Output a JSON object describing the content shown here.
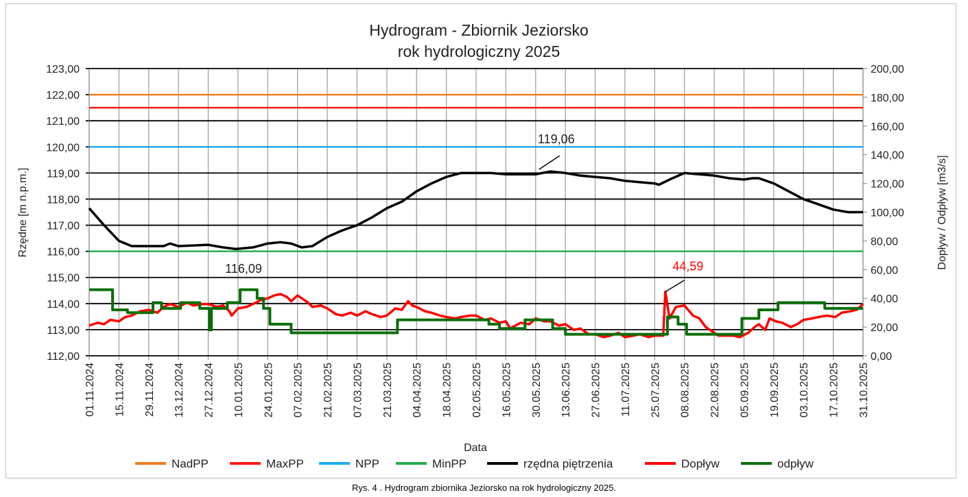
{
  "chart_data": {
    "type": "line",
    "title": "Hydrogram - Zbiornik Jeziorsko",
    "subtitle": "rok hydrologiczny 2025",
    "xlabel": "Data",
    "ylabel": "Rzędne [m n.p.m.]",
    "y2label": "Dopływ / Odpływ [m3/s]",
    "ylim": [
      112,
      123
    ],
    "y2lim": [
      0,
      200
    ],
    "grid": true,
    "legend_position": "bottom",
    "y_ticks": [
      "112,00",
      "113,00",
      "114,00",
      "115,00",
      "116,00",
      "117,00",
      "118,00",
      "119,00",
      "120,00",
      "121,00",
      "122,00",
      "123,00"
    ],
    "y2_ticks": [
      "0,00",
      "20,00",
      "40,00",
      "60,00",
      "80,00",
      "100,00",
      "120,00",
      "140,00",
      "160,00",
      "180,00",
      "200,00"
    ],
    "x_ticks": [
      "01.11.2024",
      "15.11.2024",
      "29.11.2024",
      "13.12.2024",
      "27.12.2024",
      "10.01.2025",
      "24.01.2025",
      "07.02.2025",
      "21.02.2025",
      "07.03.2025",
      "21.03.2025",
      "04.04.2025",
      "18.04.2025",
      "02.05.2025",
      "16.05.2025",
      "30.05.2025",
      "13.06.2025",
      "27.06.2025",
      "11.07.2025",
      "25.07.2025",
      "08.08.2025",
      "22.08.2025",
      "05.09.2025",
      "19.09.2025",
      "03.10.2025",
      "17.10.2025",
      "31.10.2025"
    ],
    "x_tick_days": [
      0,
      14,
      28,
      42,
      56,
      70,
      84,
      98,
      112,
      126,
      140,
      154,
      168,
      182,
      196,
      210,
      224,
      238,
      252,
      266,
      280,
      294,
      308,
      322,
      336,
      350,
      364
    ],
    "x_days_range": [
      0,
      364
    ],
    "series": [
      {
        "name": "NadPP",
        "axis": "left",
        "color": "#f07d1e",
        "constant": 122.0
      },
      {
        "name": "MaxPP",
        "axis": "left",
        "color": "#ff1a1a",
        "constant": 121.5
      },
      {
        "name": "NPP",
        "axis": "left",
        "color": "#1eaaf0",
        "constant": 120.0
      },
      {
        "name": "MinPP",
        "axis": "left",
        "color": "#22b14c",
        "constant": 116.0
      },
      {
        "name": "rzędna piętrzenia",
        "axis": "left",
        "color": "#000000",
        "days": [
          0,
          7,
          14,
          20,
          28,
          35,
          38,
          42,
          56,
          63,
          69,
          77,
          84,
          90,
          95,
          100,
          105,
          112,
          119,
          126,
          133,
          140,
          147,
          154,
          161,
          168,
          175,
          182,
          189,
          196,
          203,
          210,
          217,
          224,
          231,
          238,
          245,
          252,
          259,
          266,
          268,
          273,
          280,
          287,
          294,
          301,
          308,
          312,
          315,
          322,
          329,
          336,
          343,
          350,
          357,
          364
        ],
        "values": [
          117.65,
          117.0,
          116.4,
          116.2,
          116.2,
          116.2,
          116.3,
          116.2,
          116.25,
          116.15,
          116.09,
          116.15,
          116.3,
          116.35,
          116.3,
          116.15,
          116.2,
          116.55,
          116.8,
          117.0,
          117.3,
          117.65,
          117.9,
          118.3,
          118.6,
          118.85,
          119.0,
          119.0,
          119.0,
          118.95,
          118.95,
          118.95,
          119.06,
          119.0,
          118.9,
          118.85,
          118.8,
          118.7,
          118.65,
          118.6,
          118.55,
          118.75,
          119.0,
          118.95,
          118.9,
          118.8,
          118.75,
          118.8,
          118.8,
          118.6,
          118.3,
          118.0,
          117.8,
          117.6,
          117.5,
          117.5
        ]
      },
      {
        "name": "Dopływ",
        "axis": "right",
        "color": "#ff0000",
        "days": [
          0,
          4,
          7,
          10,
          14,
          17,
          20,
          24,
          28,
          32,
          35,
          38,
          42,
          46,
          49,
          53,
          56,
          60,
          63,
          66,
          67,
          70,
          74,
          77,
          81,
          84,
          87,
          90,
          93,
          95,
          98,
          100,
          103,
          105,
          109,
          112,
          116,
          119,
          123,
          126,
          130,
          133,
          137,
          140,
          144,
          147,
          150,
          152,
          154,
          158,
          161,
          165,
          168,
          172,
          175,
          179,
          182,
          186,
          189,
          193,
          196,
          198,
          203,
          207,
          210,
          214,
          217,
          221,
          224,
          228,
          231,
          235,
          238,
          242,
          245,
          249,
          252,
          256,
          259,
          263,
          266,
          270,
          271,
          273,
          276,
          280,
          284,
          287,
          290,
          293,
          296,
          300,
          303,
          306,
          310,
          313,
          315,
          318,
          320,
          323,
          326,
          330,
          333,
          336,
          340,
          343,
          347,
          351,
          354,
          358,
          361,
          364
        ],
        "values": [
          21,
          23,
          22,
          25,
          24,
          27,
          28,
          31,
          32,
          30,
          34,
          36,
          34,
          37,
          35,
          36,
          36,
          34,
          35,
          31,
          28,
          33,
          34,
          36,
          39,
          40,
          42,
          43,
          41,
          38,
          42,
          40,
          37,
          34,
          35,
          33,
          29,
          28,
          30,
          28,
          31,
          29,
          27,
          28,
          33,
          32,
          38,
          35,
          34,
          31,
          30,
          28,
          27,
          26,
          27,
          28,
          28,
          25,
          26,
          23,
          24,
          19,
          23,
          22,
          26,
          24,
          24,
          21,
          22,
          18,
          19,
          15,
          15,
          13,
          14,
          16,
          13,
          14,
          15,
          13,
          14,
          14,
          44.59,
          26,
          34,
          35,
          28,
          26,
          20,
          17,
          14,
          14,
          14,
          13,
          16,
          20,
          22,
          18,
          26,
          24,
          23,
          20,
          22,
          25,
          26,
          27,
          28,
          27,
          30,
          31,
          32,
          36
        ]
      },
      {
        "name": "odpływ",
        "axis": "right",
        "color": "#0a6e0a",
        "step": true,
        "days": [
          0,
          11,
          18,
          30,
          34,
          43,
          52,
          56.5,
          57.5,
          65,
          71,
          79,
          82,
          85,
          95,
          145,
          164,
          188,
          193,
          205,
          218,
          224,
          272,
          277,
          281,
          307,
          315,
          324,
          346,
          364
        ],
        "values": [
          46,
          32,
          30,
          37,
          33,
          37,
          33,
          18,
          33,
          37,
          46,
          40,
          33,
          22,
          16,
          25,
          25,
          22,
          19,
          25,
          19,
          15,
          27,
          22,
          15,
          26,
          32,
          37,
          33,
          33
        ]
      }
    ],
    "annotations": [
      {
        "text": "119,06",
        "series": "rzędna piętrzenia",
        "day": 210,
        "value": 119.06
      },
      {
        "text": "116,09",
        "series": "rzędna piętrzenia",
        "day": 69,
        "value": 116.09
      },
      {
        "text": "44,59",
        "series": "Dopływ",
        "day": 271,
        "value": 44.59,
        "color": "#ff0000"
      }
    ]
  },
  "caption": "Rys.  4 . Hydrogram zbiornika Jeziorsko na rok hydrologiczny 2025."
}
